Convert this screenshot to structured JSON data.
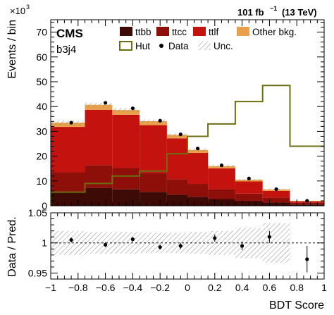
{
  "header": {
    "exponent": "×10",
    "exponent_power": "3",
    "lumi_value": "101 fb",
    "lumi_power": "−1",
    "lumi_energy": "(13 TeV)"
  },
  "labels": {
    "experiment": "CMS",
    "category": "b3j4"
  },
  "colors": {
    "ttbb": "#3d0a06",
    "ttcc": "#8e0f0a",
    "ttlf": "#c4130e",
    "other": "#e8a04a",
    "hut": "#6b6f12",
    "data": "#000000",
    "unc": "#9a9a9a"
  },
  "chart_data": [
    {
      "type": "bar",
      "stacked": true,
      "xlabel": "",
      "ylabel": "Events / bin",
      "xlim": [
        -1,
        1
      ],
      "ylim": [
        0,
        75000
      ],
      "y_ticks": [
        0,
        10,
        20,
        30,
        40,
        50,
        60,
        70
      ],
      "bin_edges": [
        -1,
        -0.75,
        -0.55,
        -0.35,
        -0.15,
        0.0,
        0.15,
        0.35,
        0.55,
        0.75,
        1.0
      ],
      "series": [
        {
          "name": "ttbb",
          "values": [
            5500,
            7200,
            6600,
            5600,
            4500,
            3600,
            2700,
            2000,
            1300,
            500
          ]
        },
        {
          "name": "ttcc",
          "values": [
            8000,
            9200,
            8600,
            7700,
            6200,
            5200,
            4000,
            2900,
            2000,
            700
          ]
        },
        {
          "name": "ttlf",
          "values": [
            18300,
            22300,
            21500,
            19200,
            16500,
            12500,
            8400,
            4900,
            2700,
            600
          ]
        },
        {
          "name": "Other bkg.",
          "values": [
            1700,
            2000,
            1900,
            1600,
            1400,
            1200,
            900,
            700,
            600,
            200
          ]
        }
      ],
      "hut": {
        "name": "Hut",
        "values": [
          5500,
          9000,
          12000,
          14000,
          21000,
          28000,
          33000,
          42000,
          48500,
          24000
        ]
      },
      "data_points": {
        "name": "Data",
        "x": [
          -0.85,
          -0.6,
          -0.4,
          -0.2,
          -0.05,
          0.075,
          0.25,
          0.45,
          0.65,
          0.875
        ],
        "y": [
          33500,
          41500,
          39300,
          34300,
          28800,
          23100,
          16300,
          11000,
          6700,
          2000
        ]
      },
      "uncertainty": {
        "name": "Unc.",
        "relative": [
          0.025,
          0.02,
          0.02,
          0.02,
          0.02,
          0.025,
          0.025,
          0.03,
          0.035,
          0.05
        ]
      },
      "legend": [
        "ttbb",
        "ttcc",
        "ttlf",
        "Other bkg.",
        "Hut",
        "Data",
        "Unc."
      ],
      "legend_position": "top"
    },
    {
      "type": "scatter",
      "xlabel": "BDT Score",
      "ylabel": "Data / Pred.",
      "xlim": [
        -1,
        1
      ],
      "ylim": [
        0.94,
        1.05
      ],
      "x_ticks": [
        "−1",
        "−0.8",
        "−0.6",
        "−0.4",
        "−0.2",
        "0",
        "0.2",
        "0.4",
        "0.6",
        "0.8",
        "1"
      ],
      "y_ticks": [
        "0.95",
        "1",
        "1.05"
      ],
      "x": [
        -0.85,
        -0.6,
        -0.4,
        -0.2,
        -0.05,
        0.2,
        0.4,
        0.6,
        0.875
      ],
      "y": [
        1.005,
        0.997,
        1.006,
        0.993,
        0.995,
        1.008,
        0.995,
        1.01,
        0.973
      ],
      "err": [
        0.004,
        0.004,
        0.004,
        0.004,
        0.005,
        0.006,
        0.007,
        0.01,
        0.022
      ],
      "band": [
        0.02,
        0.018,
        0.018,
        0.017,
        0.017,
        0.018,
        0.02,
        0.025,
        0.033
      ]
    }
  ]
}
